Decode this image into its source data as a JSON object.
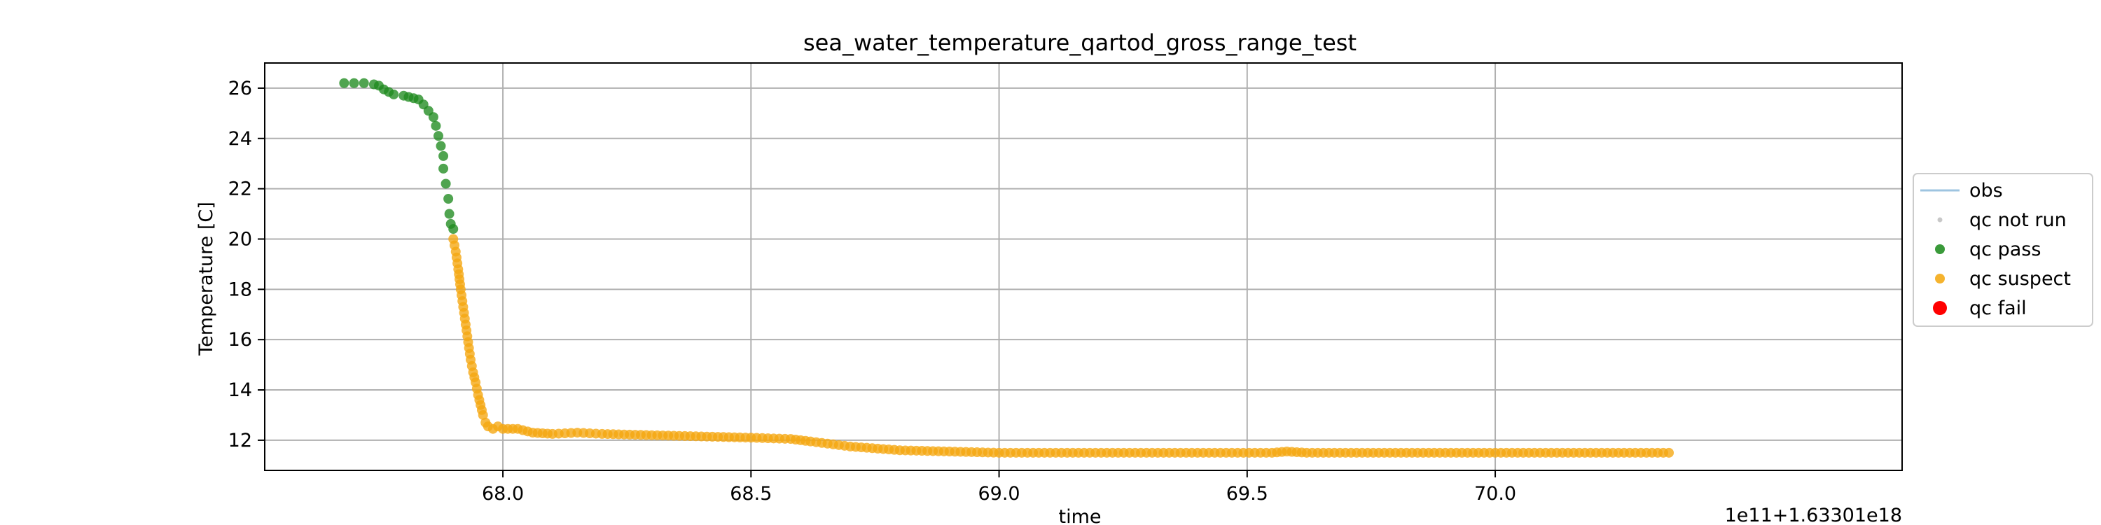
{
  "chart_data": {
    "type": "scatter",
    "title": "sea_water_temperature_qartod_gross_range_test",
    "xlabel": "time",
    "ylabel": "Temperature [C]",
    "offset_text": "1e11+1.63301e18",
    "xlim": [
      67.52,
      70.82
    ],
    "ylim": [
      10.8,
      27.0
    ],
    "x_ticks": [
      68.0,
      68.5,
      69.0,
      69.5,
      70.0
    ],
    "x_tick_labels": [
      "68.0",
      "68.5",
      "69.0",
      "69.5",
      "70.0"
    ],
    "y_ticks": [
      12,
      14,
      16,
      18,
      20,
      22,
      24,
      26
    ],
    "y_tick_labels": [
      "12",
      "14",
      "16",
      "18",
      "20",
      "22",
      "24",
      "26"
    ],
    "grid": true,
    "legend_placement": "outside-right",
    "legend": [
      {
        "label": "obs",
        "kind": "line",
        "color": "#9ec4e0"
      },
      {
        "label": "qc not run",
        "kind": "dot-small",
        "color": "#c8c8c8"
      },
      {
        "label": "qc pass",
        "kind": "dot",
        "color": "#3a9a3a"
      },
      {
        "label": "qc suspect",
        "kind": "dot",
        "color": "#f5b32e"
      },
      {
        "label": "qc fail",
        "kind": "dot-large",
        "color": "#ff0000"
      }
    ],
    "series": [
      {
        "name": "qc pass",
        "color": "#1f8a1f",
        "points": [
          [
            67.68,
            26.2
          ],
          [
            67.7,
            26.2
          ],
          [
            67.72,
            26.2
          ],
          [
            67.74,
            26.15
          ],
          [
            67.75,
            26.1
          ],
          [
            67.76,
            25.95
          ],
          [
            67.77,
            25.85
          ],
          [
            67.78,
            25.75
          ],
          [
            67.8,
            25.7
          ],
          [
            67.81,
            25.65
          ],
          [
            67.82,
            25.6
          ],
          [
            67.83,
            25.55
          ],
          [
            67.84,
            25.35
          ],
          [
            67.85,
            25.1
          ],
          [
            67.86,
            24.85
          ],
          [
            67.865,
            24.5
          ],
          [
            67.87,
            24.1
          ],
          [
            67.875,
            23.7
          ],
          [
            67.88,
            23.3
          ],
          [
            67.88,
            22.8
          ],
          [
            67.885,
            22.2
          ],
          [
            67.89,
            21.6
          ],
          [
            67.892,
            21.0
          ],
          [
            67.895,
            20.6
          ],
          [
            67.9,
            20.4
          ]
        ]
      },
      {
        "name": "qc suspect",
        "color": "#f5a70f",
        "segments": [
          [
            [
              67.9,
              20.0
            ],
            [
              67.905,
              19.5
            ],
            [
              67.91,
              18.8
            ],
            [
              67.915,
              18.0
            ],
            [
              67.92,
              17.3
            ],
            [
              67.925,
              16.6
            ],
            [
              67.93,
              15.9
            ],
            [
              67.935,
              15.2
            ],
            [
              67.94,
              14.7
            ],
            [
              67.945,
              14.3
            ],
            [
              67.95,
              13.8
            ],
            [
              67.955,
              13.4
            ],
            [
              67.96,
              13.0
            ],
            [
              67.965,
              12.7
            ],
            [
              67.97,
              12.55
            ],
            [
              67.98,
              12.45
            ],
            [
              67.99,
              12.55
            ],
            [
              68.0,
              12.45
            ],
            [
              68.03,
              12.45
            ],
            [
              68.06,
              12.3
            ],
            [
              68.1,
              12.25
            ],
            [
              68.15,
              12.3
            ],
            [
              68.2,
              12.25
            ],
            [
              68.3,
              12.2
            ],
            [
              68.4,
              12.15
            ],
            [
              68.5,
              12.1
            ],
            [
              68.58,
              12.05
            ],
            [
              68.62,
              11.95
            ],
            [
              68.7,
              11.75
            ],
            [
              68.8,
              11.6
            ],
            [
              68.9,
              11.55
            ],
            [
              69.0,
              11.5
            ],
            [
              69.4,
              11.5
            ],
            [
              69.55,
              11.5
            ],
            [
              69.58,
              11.55
            ],
            [
              69.62,
              11.5
            ],
            [
              70.0,
              11.5
            ],
            [
              70.35,
              11.5
            ]
          ]
        ]
      }
    ]
  }
}
